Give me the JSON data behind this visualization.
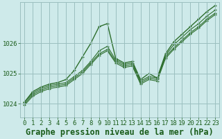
{
  "background_color": "#ceeaea",
  "grid_color": "#9bbfbf",
  "line_color": "#2d6e2d",
  "marker_color": "#2d6e2d",
  "title": "Graphe pression niveau de la mer (hPa)",
  "xlim": [
    -0.5,
    23.5
  ],
  "ylim": [
    1023.55,
    1027.35
  ],
  "yticks": [
    1024,
    1025,
    1026
  ],
  "xticks": [
    0,
    1,
    2,
    3,
    4,
    5,
    6,
    7,
    8,
    9,
    10,
    11,
    12,
    13,
    14,
    15,
    16,
    17,
    18,
    19,
    20,
    21,
    22,
    23
  ],
  "title_fontsize": 8.5,
  "tick_fontsize": 6.5,
  "title_color": "#1a5c1a",
  "tick_color": "#1a5c1a",
  "series": [
    [
      1024.05,
      1024.4,
      1024.55,
      1024.65,
      1024.7,
      1024.8,
      1025.1,
      1025.55,
      1026.0,
      1026.55,
      1026.65,
      1025.5,
      1025.35,
      1025.4,
      1024.8,
      1025.0,
      1024.85,
      1025.65,
      1026.05,
      1026.3,
      1026.55,
      1026.8,
      1027.05,
      1027.25
    ],
    [
      1024.05,
      1024.35,
      1024.5,
      1024.6,
      1024.65,
      1024.7,
      1024.9,
      1025.1,
      1025.4,
      1025.75,
      1025.9,
      1025.45,
      1025.3,
      1025.35,
      1024.75,
      1024.9,
      1024.85,
      1025.6,
      1025.95,
      1026.2,
      1026.45,
      1026.65,
      1026.9,
      1027.1
    ],
    [
      1024.0,
      1024.3,
      1024.45,
      1024.55,
      1024.6,
      1024.65,
      1024.85,
      1025.05,
      1025.35,
      1025.65,
      1025.8,
      1025.4,
      1025.25,
      1025.3,
      1024.7,
      1024.85,
      1024.8,
      1025.55,
      1025.85,
      1026.1,
      1026.35,
      1026.55,
      1026.8,
      1027.0
    ],
    [
      1023.95,
      1024.25,
      1024.4,
      1024.5,
      1024.55,
      1024.6,
      1024.8,
      1025.0,
      1025.3,
      1025.6,
      1025.75,
      1025.35,
      1025.2,
      1025.25,
      1024.65,
      1024.8,
      1024.75,
      1025.5,
      1025.8,
      1026.05,
      1026.3,
      1026.5,
      1026.75,
      1026.95
    ]
  ]
}
